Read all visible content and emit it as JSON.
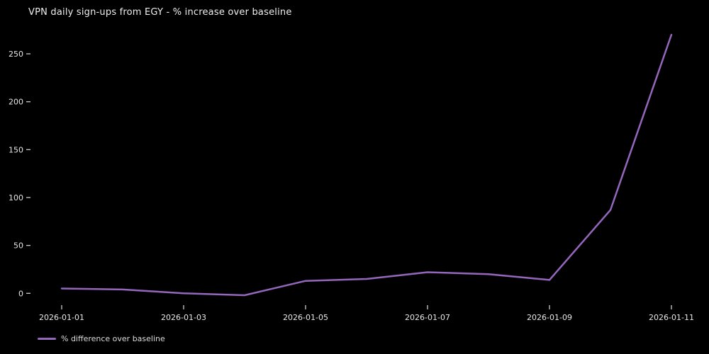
{
  "chart_data": {
    "type": "line",
    "title": "VPN daily sign-ups from EGY - % increase over baseline",
    "x": [
      "2026-01-01",
      "2026-01-02",
      "2026-01-03",
      "2026-01-04",
      "2026-01-05",
      "2026-01-06",
      "2026-01-07",
      "2026-01-08",
      "2026-01-09",
      "2026-01-10",
      "2026-01-11"
    ],
    "series": [
      {
        "name": "% difference over baseline",
        "color": "#9467bd",
        "values": [
          5,
          4,
          0,
          -2,
          13,
          15,
          22,
          20,
          14,
          87,
          270
        ]
      }
    ],
    "x_tick_labels": [
      "2026-01-01",
      "2026-01-03",
      "2026-01-05",
      "2026-01-07",
      "2026-01-09",
      "2026-01-11"
    ],
    "y_ticks": [
      0,
      50,
      100,
      150,
      200,
      250
    ],
    "ylim": [
      -20,
      285
    ],
    "grid": false,
    "legend": {
      "position": "lower-left",
      "label": "% difference over baseline"
    },
    "colors": {
      "background": "#000000",
      "text": "#e8e8e8",
      "tick": "#cccccc"
    }
  }
}
